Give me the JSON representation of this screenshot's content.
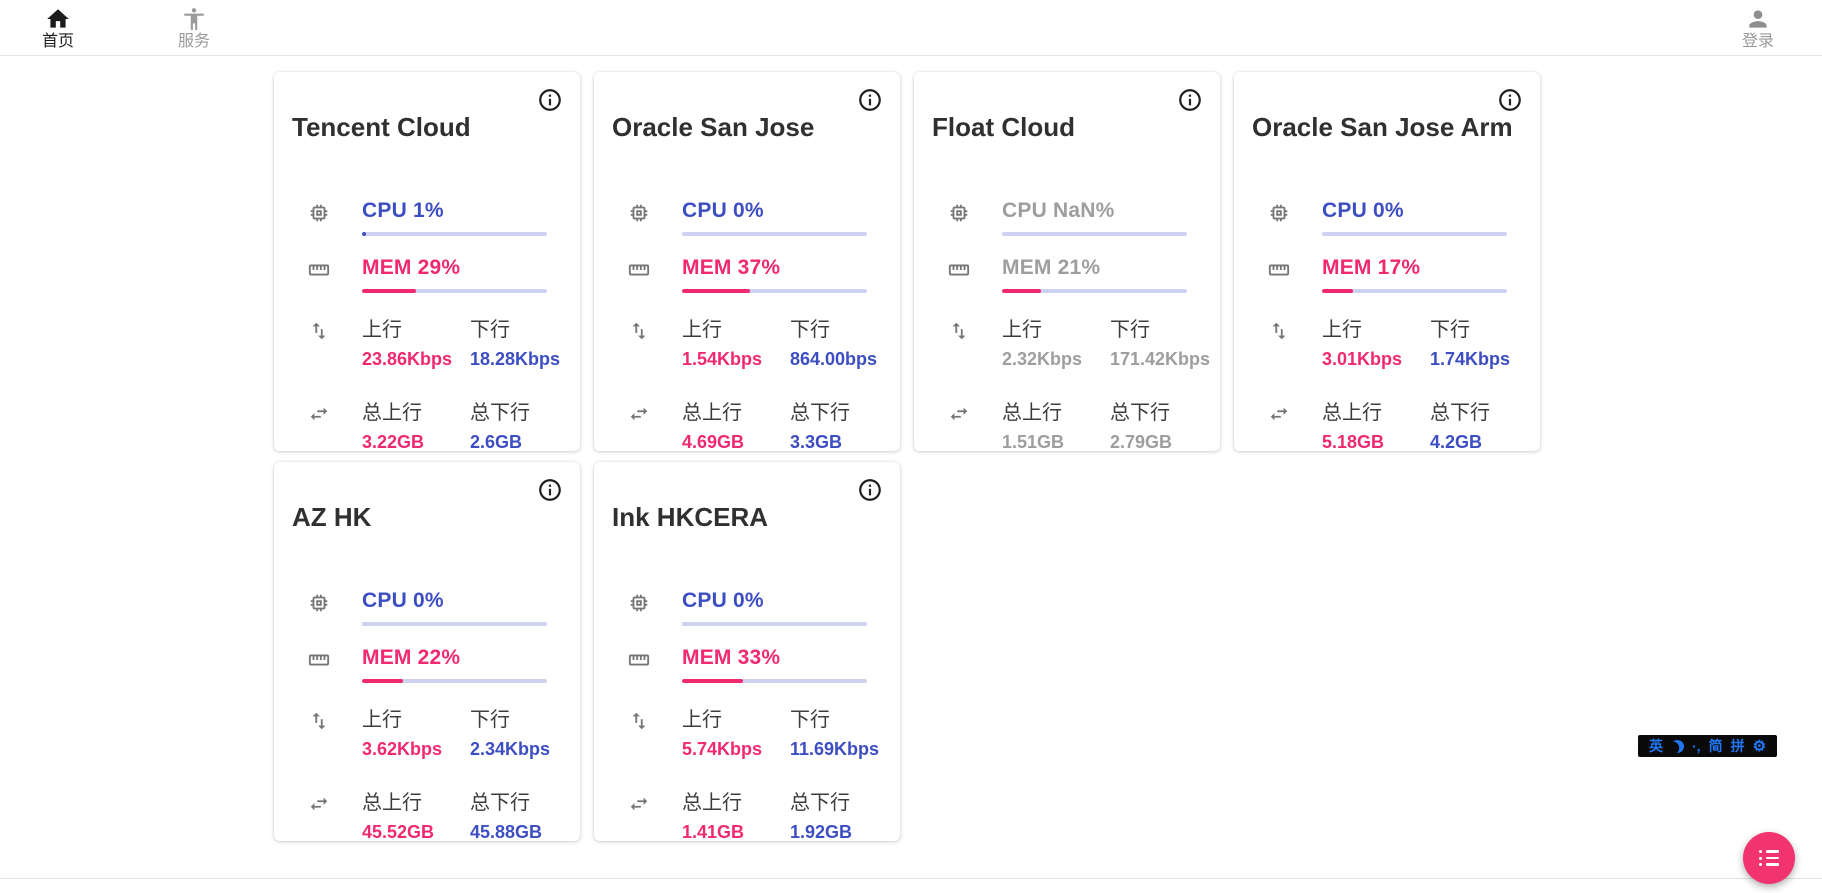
{
  "navbar": {
    "home": {
      "label": "首页",
      "icon": "home-icon",
      "active": true
    },
    "services": {
      "label": "服务",
      "icon": "accessibility-icon",
      "active": false
    },
    "login": {
      "label": "登录",
      "icon": "person-icon",
      "active": false
    }
  },
  "net_labels": {
    "up": "上行",
    "down": "下行",
    "total_up": "总上行",
    "total_down": "总下行"
  },
  "cards": [
    {
      "title": "Tencent Cloud",
      "muted": false,
      "cpu": {
        "label": "CPU 1%",
        "pct": 1
      },
      "mem": {
        "label": "MEM 29%",
        "pct": 29
      },
      "up_value": "23.86Kbps",
      "down_value": "18.28Kbps",
      "total_up_value": "3.22GB",
      "total_down_value": "2.6GB"
    },
    {
      "title": "Oracle San Jose",
      "muted": false,
      "cpu": {
        "label": "CPU 0%",
        "pct": 0
      },
      "mem": {
        "label": "MEM 37%",
        "pct": 37
      },
      "up_value": "1.54Kbps",
      "down_value": "864.00bps",
      "total_up_value": "4.69GB",
      "total_down_value": "3.3GB"
    },
    {
      "title": "Float Cloud",
      "muted": true,
      "cpu": {
        "label": "CPU NaN%",
        "pct": null
      },
      "mem": {
        "label": "MEM 21%",
        "pct": 21
      },
      "up_value": "2.32Kbps",
      "down_value": "171.42Kbps",
      "total_up_value": "1.51GB",
      "total_down_value": "2.79GB"
    },
    {
      "title": "Oracle San Jose Arm",
      "muted": false,
      "cpu": {
        "label": "CPU 0%",
        "pct": 0
      },
      "mem": {
        "label": "MEM 17%",
        "pct": 17
      },
      "up_value": "3.01Kbps",
      "down_value": "1.74Kbps",
      "total_up_value": "5.18GB",
      "total_down_value": "4.2GB"
    },
    {
      "title": "AZ HK",
      "muted": false,
      "cpu": {
        "label": "CPU 0%",
        "pct": 0
      },
      "mem": {
        "label": "MEM 22%",
        "pct": 22
      },
      "up_value": "3.62Kbps",
      "down_value": "2.34Kbps",
      "total_up_value": "45.52GB",
      "total_down_value": "45.88GB"
    },
    {
      "title": "Ink HKCERA",
      "muted": false,
      "cpu": {
        "label": "CPU 0%",
        "pct": 0
      },
      "mem": {
        "label": "MEM 33%",
        "pct": 33
      },
      "up_value": "5.74Kbps",
      "down_value": "11.69Kbps",
      "total_up_value": "1.41GB",
      "total_down_value": "1.92GB"
    }
  ],
  "ime_bar": {
    "lang": "英",
    "moon_icon": "moon-crescent",
    "punct": "·,",
    "simplified": "简",
    "pinyin": "拼",
    "gear": "⚙"
  },
  "fab": {
    "icon": "list-icon",
    "color": "#f1336f"
  },
  "colors": {
    "accent_blue": "#3d4ec3",
    "accent_pink": "#f02970",
    "muted_gray": "#9e9e9e",
    "bar_track": "#cdd2f0",
    "ime_blue": "#2176f5"
  }
}
